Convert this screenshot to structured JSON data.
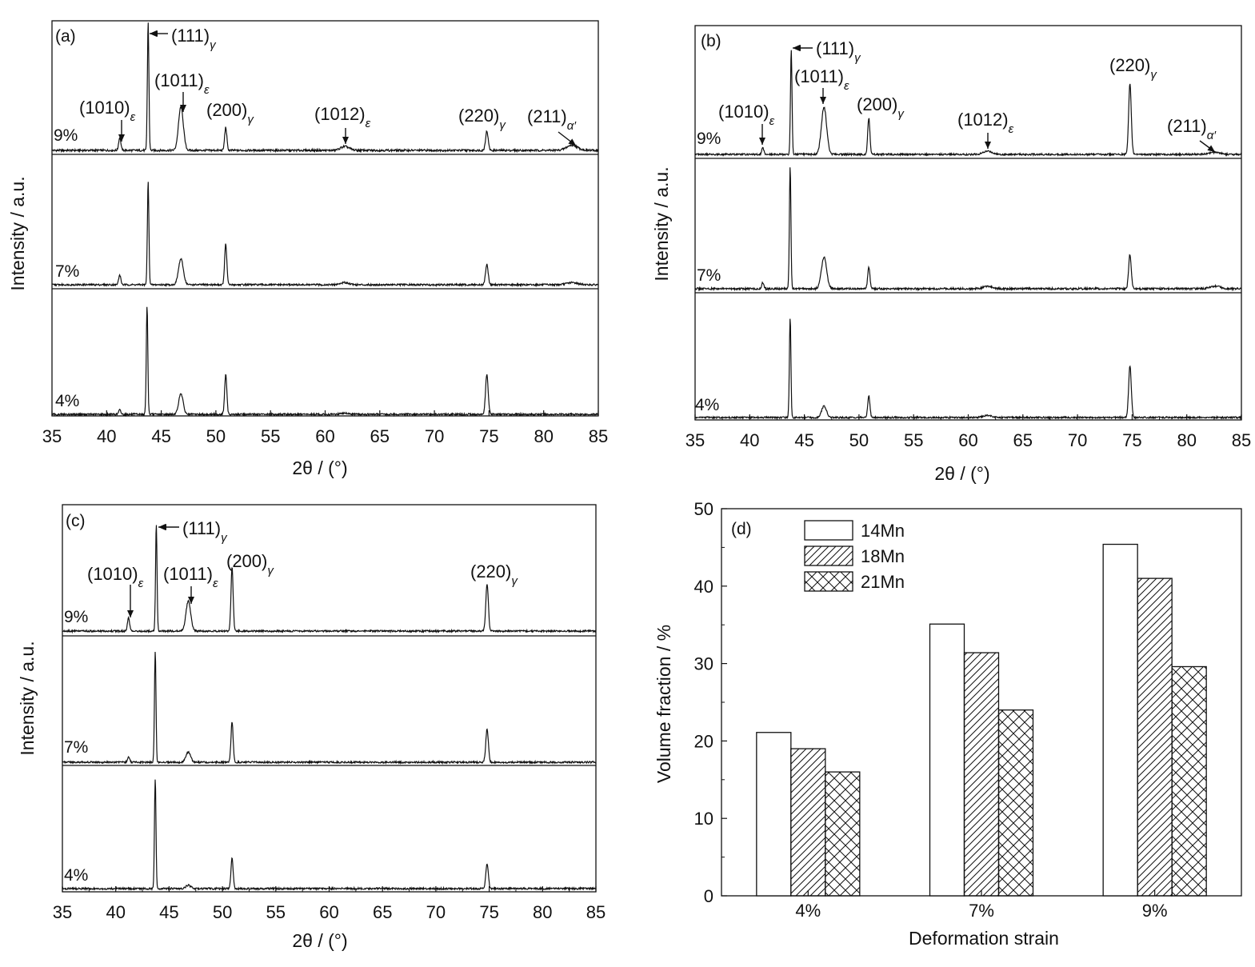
{
  "chart_data": [
    {
      "type": "line",
      "panel": "(a)",
      "xlabel": "2θ / (°)",
      "ylabel": "Intensity / a.u.",
      "xlim": [
        35,
        85
      ],
      "xticks": [
        35,
        40,
        45,
        50,
        55,
        60,
        65,
        70,
        75,
        80,
        85
      ],
      "grid": false,
      "series": [
        {
          "name": "9%",
          "peaks": [
            {
              "x": 41.2,
              "h": 0.1,
              "w": 0.1
            },
            {
              "x": 43.8,
              "h": 1.0,
              "w": 0.07
            },
            {
              "x": 46.8,
              "h": 0.34,
              "w": 0.22
            },
            {
              "x": 50.9,
              "h": 0.18,
              "w": 0.1
            },
            {
              "x": 61.8,
              "h": 0.03,
              "w": 0.4
            },
            {
              "x": 74.8,
              "h": 0.15,
              "w": 0.12
            },
            {
              "x": 82.6,
              "h": 0.04,
              "w": 0.5
            }
          ]
        },
        {
          "name": "7%",
          "peaks": [
            {
              "x": 41.2,
              "h": 0.09,
              "w": 0.1
            },
            {
              "x": 43.8,
              "h": 0.96,
              "w": 0.07
            },
            {
              "x": 46.8,
              "h": 0.24,
              "w": 0.22
            },
            {
              "x": 50.9,
              "h": 0.38,
              "w": 0.1
            },
            {
              "x": 61.8,
              "h": 0.02,
              "w": 0.4
            },
            {
              "x": 74.8,
              "h": 0.19,
              "w": 0.12
            },
            {
              "x": 82.6,
              "h": 0.02,
              "w": 0.5
            }
          ]
        },
        {
          "name": "4%",
          "peaks": [
            {
              "x": 41.2,
              "h": 0.04,
              "w": 0.1
            },
            {
              "x": 43.7,
              "h": 0.98,
              "w": 0.07
            },
            {
              "x": 46.8,
              "h": 0.19,
              "w": 0.2
            },
            {
              "x": 50.9,
              "h": 0.36,
              "w": 0.1
            },
            {
              "x": 61.8,
              "h": 0.01,
              "w": 0.4
            },
            {
              "x": 74.8,
              "h": 0.36,
              "w": 0.12
            }
          ]
        }
      ],
      "annotations": [
        {
          "base": "(111)",
          "sub": "γ",
          "x": 43.8
        },
        {
          "base": "(1011)",
          "sub": "ε",
          "x": 46.8
        },
        {
          "base": "(1010)",
          "sub": "ε",
          "x": 41.2
        },
        {
          "base": "(200)",
          "sub": "γ",
          "x": 50.9
        },
        {
          "base": "(1012)",
          "sub": "ε",
          "x": 61.8
        },
        {
          "base": "(220)",
          "sub": "γ",
          "x": 74.8
        },
        {
          "base": "(211)",
          "sub": "α′",
          "x": 82.6
        }
      ]
    },
    {
      "type": "line",
      "panel": "(b)",
      "xlabel": "2θ / (°)",
      "ylabel": "Intensity / a.u.",
      "xlim": [
        35,
        85
      ],
      "xticks": [
        35,
        40,
        45,
        50,
        55,
        60,
        65,
        70,
        75,
        80,
        85
      ],
      "grid": false,
      "series": [
        {
          "name": "9%",
          "peaks": [
            {
              "x": 41.2,
              "h": 0.06,
              "w": 0.1
            },
            {
              "x": 43.8,
              "h": 0.98,
              "w": 0.07
            },
            {
              "x": 46.8,
              "h": 0.44,
              "w": 0.24
            },
            {
              "x": 50.9,
              "h": 0.34,
              "w": 0.1
            },
            {
              "x": 61.8,
              "h": 0.03,
              "w": 0.4
            },
            {
              "x": 74.8,
              "h": 0.66,
              "w": 0.12
            },
            {
              "x": 82.6,
              "h": 0.02,
              "w": 0.5
            }
          ]
        },
        {
          "name": "7%",
          "peaks": [
            {
              "x": 41.2,
              "h": 0.05,
              "w": 0.1
            },
            {
              "x": 43.7,
              "h": 1.0,
              "w": 0.07
            },
            {
              "x": 46.8,
              "h": 0.26,
              "w": 0.24
            },
            {
              "x": 50.9,
              "h": 0.18,
              "w": 0.1
            },
            {
              "x": 61.8,
              "h": 0.02,
              "w": 0.4
            },
            {
              "x": 74.8,
              "h": 0.28,
              "w": 0.12
            },
            {
              "x": 82.6,
              "h": 0.02,
              "w": 0.5
            }
          ]
        },
        {
          "name": "4%",
          "peaks": [
            {
              "x": 43.7,
              "h": 0.96,
              "w": 0.07
            },
            {
              "x": 46.8,
              "h": 0.11,
              "w": 0.22
            },
            {
              "x": 50.9,
              "h": 0.21,
              "w": 0.1
            },
            {
              "x": 61.8,
              "h": 0.02,
              "w": 0.4
            },
            {
              "x": 74.8,
              "h": 0.5,
              "w": 0.12
            }
          ]
        }
      ],
      "annotations": [
        {
          "base": "(111)",
          "sub": "γ",
          "x": 43.8
        },
        {
          "base": "(1011)",
          "sub": "ε",
          "x": 46.8
        },
        {
          "base": "(1010)",
          "sub": "ε",
          "x": 41.2
        },
        {
          "base": "(200)",
          "sub": "γ",
          "x": 50.9
        },
        {
          "base": "(1012)",
          "sub": "ε",
          "x": 61.8
        },
        {
          "base": "(220)",
          "sub": "γ",
          "x": 74.8
        },
        {
          "base": "(211)",
          "sub": "α′",
          "x": 82.6
        }
      ]
    },
    {
      "type": "line",
      "panel": "(c)",
      "xlabel": "2θ / (°)",
      "ylabel": "Intensity / a.u.",
      "xlim": [
        35,
        85
      ],
      "xticks": [
        35,
        40,
        45,
        50,
        55,
        60,
        65,
        70,
        75,
        80,
        85
      ],
      "grid": false,
      "series": [
        {
          "name": "9%",
          "peaks": [
            {
              "x": 41.2,
              "h": 0.13,
              "w": 0.1
            },
            {
              "x": 43.8,
              "h": 1.0,
              "w": 0.07
            },
            {
              "x": 46.8,
              "h": 0.28,
              "w": 0.22
            },
            {
              "x": 50.9,
              "h": 0.6,
              "w": 0.1
            },
            {
              "x": 74.8,
              "h": 0.44,
              "w": 0.12
            }
          ]
        },
        {
          "name": "7%",
          "peaks": [
            {
              "x": 41.2,
              "h": 0.05,
              "w": 0.1
            },
            {
              "x": 43.7,
              "h": 1.0,
              "w": 0.07
            },
            {
              "x": 46.8,
              "h": 0.09,
              "w": 0.22
            },
            {
              "x": 50.9,
              "h": 0.37,
              "w": 0.1
            },
            {
              "x": 74.8,
              "h": 0.3,
              "w": 0.12
            }
          ]
        },
        {
          "name": "4%",
          "peaks": [
            {
              "x": 43.7,
              "h": 1.0,
              "w": 0.07
            },
            {
              "x": 46.8,
              "h": 0.03,
              "w": 0.22
            },
            {
              "x": 50.9,
              "h": 0.28,
              "w": 0.1
            },
            {
              "x": 74.8,
              "h": 0.22,
              "w": 0.12
            }
          ]
        }
      ],
      "annotations": [
        {
          "base": "(111)",
          "sub": "γ",
          "x": 43.8
        },
        {
          "base": "(1010)",
          "sub": "ε",
          "x": 41.2
        },
        {
          "base": "(1011)",
          "sub": "ε",
          "x": 46.8
        },
        {
          "base": "(200)",
          "sub": "γ",
          "x": 50.9
        },
        {
          "base": "(220)",
          "sub": "γ",
          "x": 74.8
        }
      ]
    },
    {
      "type": "bar",
      "panel": "(d)",
      "categories": [
        "4%",
        "7%",
        "9%"
      ],
      "xlabel": "Deformation strain",
      "ylabel": "Volume fraction / %",
      "ylim": [
        0,
        50
      ],
      "yticks": [
        0,
        10,
        20,
        30,
        40,
        50
      ],
      "grid": false,
      "legend": "top-left",
      "series": [
        {
          "name": "14Mn",
          "pattern": "solid",
          "values": [
            21.1,
            35.1,
            45.4
          ]
        },
        {
          "name": "18Mn",
          "pattern": "hatch",
          "values": [
            19.0,
            31.4,
            41.0
          ]
        },
        {
          "name": "21Mn",
          "pattern": "crosshatch",
          "values": [
            16.0,
            24.0,
            29.6
          ]
        }
      ]
    }
  ]
}
